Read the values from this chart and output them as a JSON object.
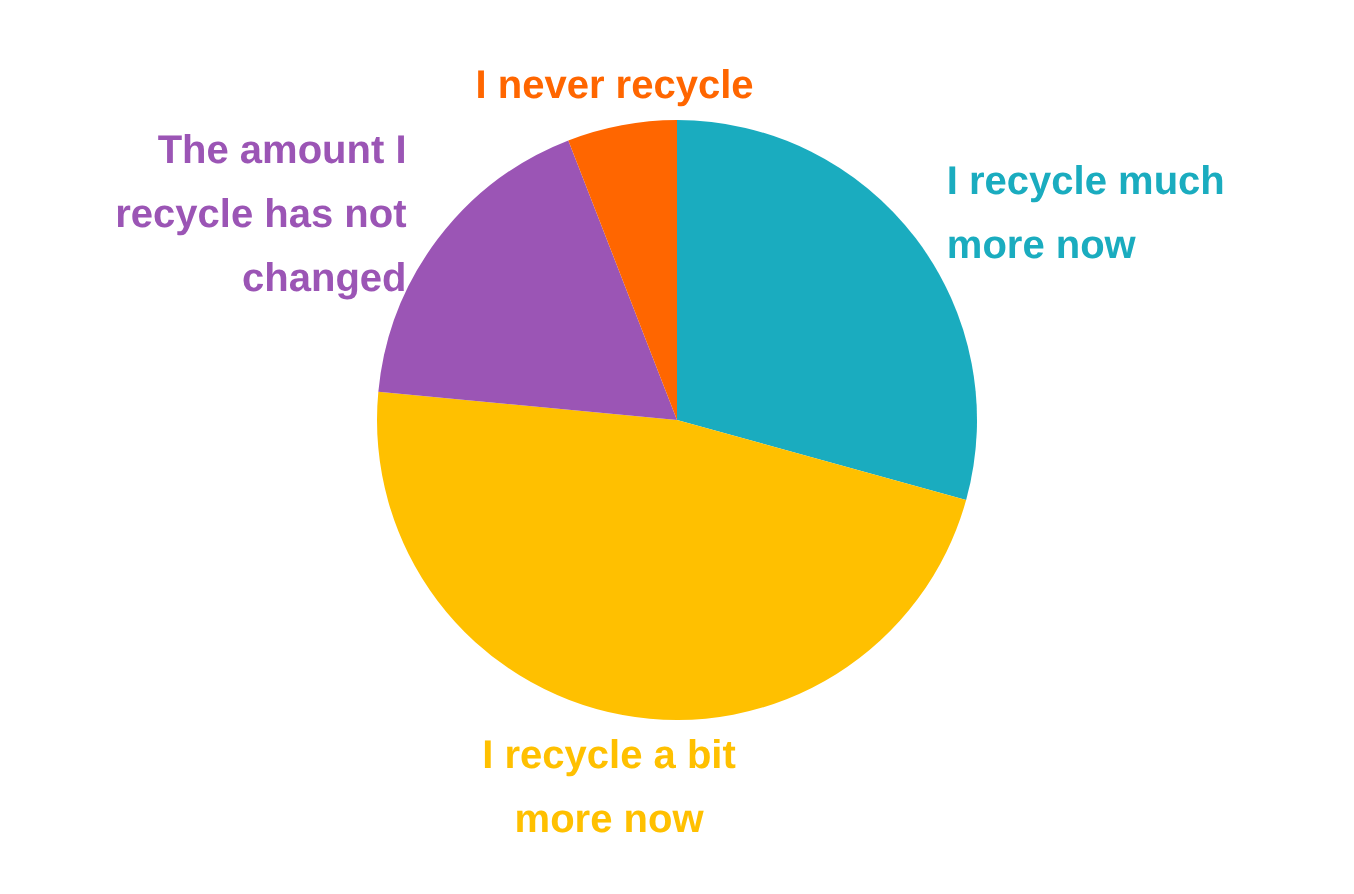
{
  "chart_data": {
    "type": "pie",
    "categories": [
      "I recycle much more now",
      "I recycle a bit more now",
      "The amount I recycle has not changed",
      "I never recycle"
    ],
    "values": [
      29.3,
      47.2,
      17.6,
      5.9
    ],
    "colors": [
      "#1aacbf",
      "#ffc000",
      "#9b55b5",
      "#ff6600"
    ],
    "data_labels": false,
    "legend": false
  }
}
